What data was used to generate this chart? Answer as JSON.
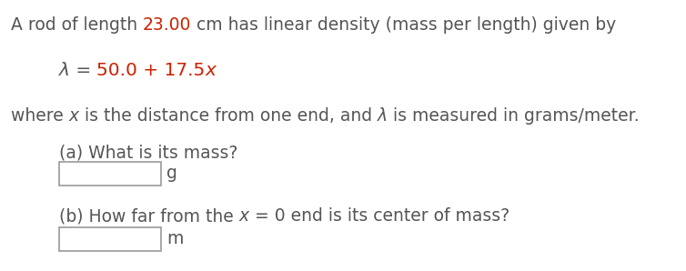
{
  "background_color": "#ffffff",
  "text_color": "#555555",
  "red_color": "#cc2200",
  "font_size": 13.5,
  "font_family": "DejaVu Sans",
  "line1_pre": "A rod of length ",
  "line1_red": "23.00",
  "line1_post": " cm has linear density (mass per length) given by",
  "line2_lambda": "λ",
  "line2_eq": " = ",
  "line2_red": "50.0 + 17.5",
  "line2_x": "x",
  "line3_pre": "where ",
  "line3_x": "x",
  "line3_mid": " is the distance from one end, and ",
  "line3_lambda": "λ",
  "line3_post": " is measured in grams/meter.",
  "qa_label": "(a) What is its mass?",
  "qa_unit": "g",
  "qb_pre": "(b) How far from the ",
  "qb_x": "x",
  "qb_post": " = 0 end is its center of mass?",
  "qb_unit": "m",
  "fig_width": 7.54,
  "fig_height": 2.98,
  "dpi": 100
}
